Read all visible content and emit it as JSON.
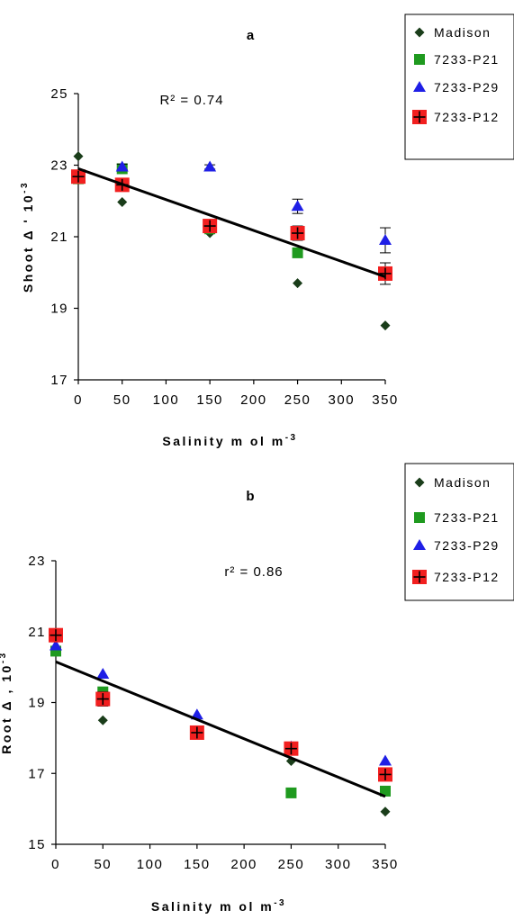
{
  "colors": {
    "Madison": "#1a3d1a",
    "7233-P21": "#1f9a1f",
    "7233-P29": "#1f1fe6",
    "7233-P12": "#f21f1f"
  },
  "chart_data": [
    {
      "type": "scatter",
      "panel": "a",
      "r2_label": "R² = 0.74",
      "xlabel": "Salinity  m ol m",
      "xlabel_sup": "-3",
      "ylabel": "Shoot Δ ' 10",
      "ylabel_sup": "-3",
      "xlim": [
        0,
        350
      ],
      "ylim": [
        17,
        25
      ],
      "xticks": [
        0,
        50,
        100,
        150,
        200,
        250,
        300,
        350
      ],
      "yticks": [
        17,
        19,
        21,
        23,
        25
      ],
      "legend": [
        "Madison",
        "7233-P21",
        "7233-P29",
        "7233-P12"
      ],
      "legend_position": "top-right",
      "x": [
        0,
        50,
        150,
        250,
        350
      ],
      "series": [
        {
          "name": "Madison",
          "marker": "diamond",
          "values": [
            23.25,
            21.97,
            21.1,
            19.7,
            18.52
          ]
        },
        {
          "name": "7233-P21",
          "marker": "square",
          "values": [
            22.62,
            22.9,
            21.22,
            20.55,
            20.0
          ]
        },
        {
          "name": "7233-P29",
          "marker": "triangle",
          "values": [
            22.7,
            22.95,
            22.95,
            21.85,
            20.9
          ],
          "errors": [
            0,
            0.08,
            0.06,
            0.2,
            0.35
          ]
        },
        {
          "name": "7233-P12",
          "marker": "square-plus",
          "values": [
            22.68,
            22.45,
            21.3,
            21.1,
            19.97
          ],
          "errors": [
            0.1,
            0.15,
            0.1,
            0.2,
            0.3
          ]
        }
      ],
      "trendline": {
        "x": [
          0,
          350
        ],
        "y": [
          22.9,
          19.88
        ]
      }
    },
    {
      "type": "scatter",
      "panel": "b",
      "r2_label": "r² = 0.86",
      "xlabel": "Salinity  m ol m",
      "xlabel_sup": "-3",
      "ylabel": "Root Δ , 10",
      "ylabel_sup": "-3",
      "xlim": [
        0,
        350
      ],
      "ylim": [
        15,
        23
      ],
      "xticks": [
        0,
        50,
        100,
        150,
        200,
        250,
        300,
        350
      ],
      "yticks": [
        15,
        17,
        19,
        21,
        23
      ],
      "legend": [
        "Madison",
        "7233-P21",
        "7233-P29",
        "7233-P12"
      ],
      "legend_position": "top-right",
      "x": [
        0,
        50,
        150,
        250,
        350
      ],
      "series": [
        {
          "name": "Madison",
          "marker": "diamond",
          "values": [
            20.45,
            18.5,
            18.1,
            17.35,
            15.92
          ]
        },
        {
          "name": "7233-P21",
          "marker": "square",
          "values": [
            20.45,
            19.3,
            18.2,
            16.45,
            16.5
          ]
        },
        {
          "name": "7233-P29",
          "marker": "triangle",
          "values": [
            20.6,
            19.8,
            18.65,
            17.75,
            17.35
          ]
        },
        {
          "name": "7233-P12",
          "marker": "square-plus",
          "values": [
            20.9,
            19.1,
            18.15,
            17.7,
            16.97
          ],
          "errors": [
            0.1,
            0.2,
            0.1,
            0.1,
            0.15
          ]
        }
      ],
      "trendline": {
        "x": [
          0,
          350
        ],
        "y": [
          20.15,
          16.35
        ]
      }
    }
  ]
}
